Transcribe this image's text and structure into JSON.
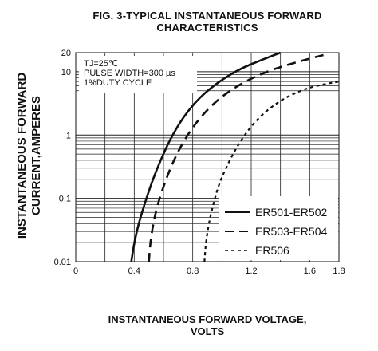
{
  "chart_data": {
    "type": "line",
    "title_line1": "FIG. 3-TYPICAL INSTANTANEOUS FORWARD",
    "title_line2": "CHARACTERISTICS",
    "ylabel_line1": "INSTANTANEOUS FORWARD",
    "ylabel_line2": "CURRENT,AMPERES",
    "xlabel_line1": "INSTANTANEOUS FORWARD VOLTAGE,",
    "xlabel_line2": "VOLTS",
    "xlim": [
      0,
      1.8
    ],
    "ylim": [
      0.01,
      20
    ],
    "yscale": "log",
    "grid": true,
    "x_ticks": [
      {
        "value": 0,
        "label": "0"
      },
      {
        "value": 0.4,
        "label": "0.4"
      },
      {
        "value": 0.8,
        "label": "0.8"
      },
      {
        "value": 1.2,
        "label": "1.2"
      },
      {
        "value": 1.6,
        "label": "1.6"
      },
      {
        "value": 1.8,
        "label": "1.8"
      }
    ],
    "y_ticks": [
      {
        "value": 0.01,
        "label": "0.01"
      },
      {
        "value": 0.1,
        "label": "0.1"
      },
      {
        "value": 1,
        "label": "1"
      },
      {
        "value": 10,
        "label": "10"
      },
      {
        "value": 20,
        "label": "20"
      }
    ],
    "annotations": [
      "TJ=25℃",
      "PULSE WIDTH=300 µs",
      "1%DUTY CYCLE"
    ],
    "legend_position": "bottom-right",
    "series": [
      {
        "name": "ER501-ER502",
        "style": "solid",
        "x": [
          0.38,
          0.4,
          0.43,
          0.47,
          0.52,
          0.58,
          0.65,
          0.74,
          0.85,
          0.98,
          1.12,
          1.26,
          1.4
        ],
        "y": [
          0.01,
          0.02,
          0.04,
          0.08,
          0.18,
          0.4,
          0.9,
          2.0,
          4.0,
          7.0,
          11.0,
          15.0,
          20.0
        ]
      },
      {
        "name": "ER503-ER504",
        "style": "dashed",
        "x": [
          0.5,
          0.51,
          0.53,
          0.56,
          0.61,
          0.67,
          0.75,
          0.85,
          0.98,
          1.13,
          1.3,
          1.5,
          1.72
        ],
        "y": [
          0.01,
          0.02,
          0.04,
          0.08,
          0.18,
          0.4,
          0.9,
          1.9,
          3.8,
          6.5,
          10.0,
          14.0,
          19.0
        ]
      },
      {
        "name": "ER506",
        "style": "dotted",
        "x": [
          0.88,
          0.89,
          0.91,
          0.94,
          0.98,
          1.04,
          1.11,
          1.2,
          1.31,
          1.44,
          1.58,
          1.72,
          1.8
        ],
        "y": [
          0.01,
          0.02,
          0.04,
          0.08,
          0.17,
          0.35,
          0.7,
          1.4,
          2.5,
          4.0,
          5.5,
          6.5,
          7.0
        ]
      }
    ]
  }
}
